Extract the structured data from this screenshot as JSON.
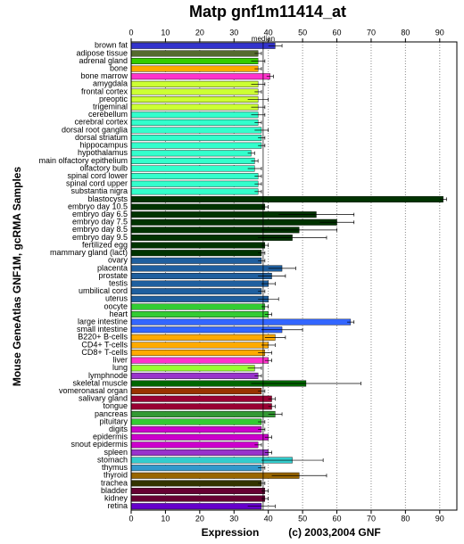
{
  "chart_data": {
    "type": "hbar",
    "title": "Matp gnf1m11414_at",
    "y_label": "Mouse GeneAtlas GNF1M, gcRMA Samples",
    "x_label": "Expression",
    "credit": "(c) 2003,2004 GNF",
    "median": {
      "value": 38.5,
      "label": "median"
    },
    "xlim": [
      0,
      95
    ],
    "xticks": [
      0,
      10,
      20,
      30,
      40,
      50,
      60,
      70,
      80,
      90
    ],
    "grid": true,
    "categories": [
      "brown fat",
      "adipose tissue",
      "adrenal gland",
      "bone",
      "bone marrow",
      "amygdala",
      "frontal cortex",
      "preoptic",
      "trigeminal",
      "cerebellum",
      "cerebral cortex",
      "dorsal root ganglia",
      "dorsal striatum",
      "hippocampus",
      "hypothalamus",
      "main olfactory epithelium",
      "olfactory bulb",
      "spinal cord lower",
      "spinal cord upper",
      "substantia nigra",
      "blastocysts",
      "embryo day 10.5",
      "embryo day 6.5",
      "embryo day 7.5",
      "embryo day 8.5",
      "embryo day 9.5",
      "fertilized egg",
      "mammary gland (lact)",
      "ovary",
      "placenta",
      "prostate",
      "testis",
      "umbilical cord",
      "uterus",
      "oocyte",
      "heart",
      "large intestine",
      "small intestine",
      "B220+ B-cells",
      "CD4+ T-cells",
      "CD8+ T-cells",
      "liver",
      "lung",
      "lymphnode",
      "skeletal muscle",
      "vomeronasal organ",
      "salivary gland",
      "tongue",
      "pancreas",
      "pituitary",
      "digits",
      "epidermis",
      "snout epidermis",
      "spleen",
      "stomach",
      "thymus",
      "thyroid",
      "trachea",
      "bladder",
      "kidney",
      "retina"
    ],
    "values": [
      42,
      37,
      37,
      37,
      40.5,
      37,
      37,
      37,
      37,
      37,
      37,
      38,
      38,
      38,
      35,
      36,
      36,
      37,
      37,
      37,
      91,
      39,
      54,
      60,
      49,
      47,
      39,
      38,
      38,
      44,
      41,
      40,
      38,
      40,
      39,
      40,
      64,
      44,
      42,
      40,
      39,
      40,
      36,
      37,
      51,
      38,
      41,
      41,
      42,
      38,
      38,
      40,
      37,
      40,
      47,
      38,
      49,
      38,
      39,
      39,
      38
    ],
    "errors": [
      2,
      1,
      2,
      1,
      1,
      2,
      1,
      3,
      2,
      2,
      1,
      2,
      1,
      1,
      1,
      1,
      2,
      1,
      1,
      1,
      1,
      1,
      11,
      5,
      11,
      10,
      1,
      1,
      1,
      4,
      4,
      2,
      1,
      3,
      1,
      1,
      1,
      6,
      3,
      2,
      2,
      1,
      2,
      1,
      16,
      1,
      1,
      1,
      2,
      1,
      1,
      1,
      1,
      1,
      9,
      1,
      8,
      1,
      1,
      1,
      4
    ],
    "colors": [
      "#3333cc",
      "#556b2f",
      "#33cc00",
      "#ffaa00",
      "#ff33cc",
      "#ccff33",
      "#ccff33",
      "#ccff33",
      "#ccff33",
      "#33ffcc",
      "#33ffcc",
      "#33ffcc",
      "#33ffcc",
      "#33ffcc",
      "#33ffcc",
      "#33ffcc",
      "#33ffcc",
      "#33ffcc",
      "#33ffcc",
      "#33ffcc",
      "#003300",
      "#003300",
      "#003300",
      "#003300",
      "#003300",
      "#003300",
      "#003300",
      "#003300",
      "#1f5f9f",
      "#1f5f9f",
      "#1f5f9f",
      "#1f5f9f",
      "#1f5f9f",
      "#1f5f9f",
      "#33cc33",
      "#33cc33",
      "#3366ff",
      "#3366ff",
      "#ffaa00",
      "#ffaa00",
      "#ffaa00",
      "#ff33cc",
      "#99ff33",
      "#9933cc",
      "#006600",
      "#993300",
      "#990033",
      "#990033",
      "#339933",
      "#33cc33",
      "#cc00cc",
      "#cc00cc",
      "#cc00cc",
      "#9933cc",
      "#33cccc",
      "#3399cc",
      "#996600",
      "#333300",
      "#660033",
      "#660033",
      "#6600cc"
    ]
  }
}
